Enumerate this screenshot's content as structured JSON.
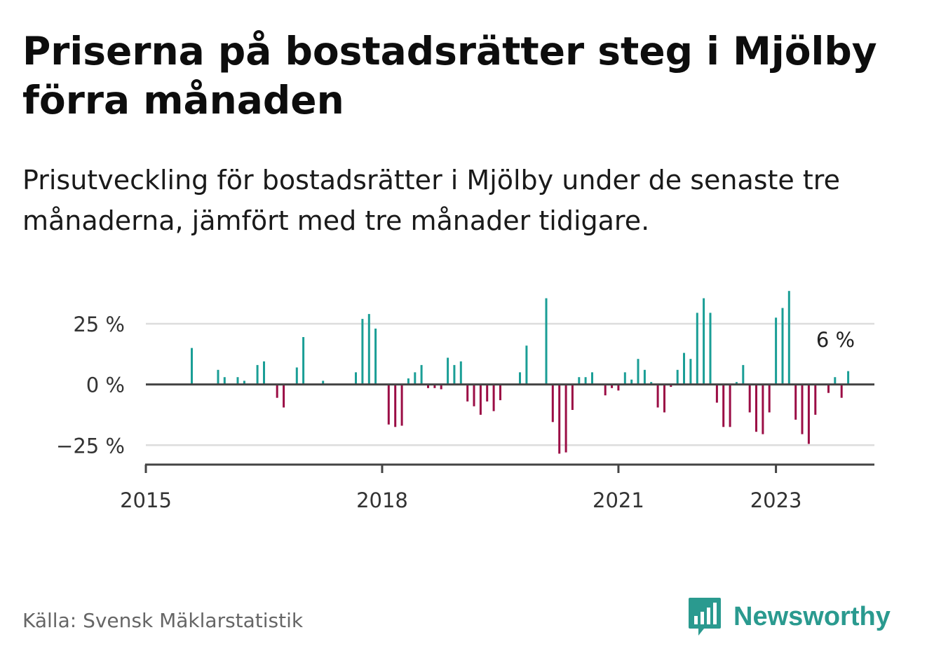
{
  "header": {
    "title": "Priserna på bostadsrätter steg i Mjölby förra månaden",
    "subtitle": "Prisutveckling för bostadsrätter i Mjölby under de senaste tre månaderna, jämfört med tre månader tidigare."
  },
  "footer": {
    "source": "Källa: Svensk Mäklarstatistik",
    "brand": "Newsworthy"
  },
  "colors": {
    "positive": "#1a9e96",
    "negative": "#9b0d45",
    "brand": "#2a9a8f"
  },
  "chart_data": {
    "type": "bar",
    "xlim": [
      "2015-01",
      "2024-04"
    ],
    "ylim": [
      -33,
      40
    ],
    "x_ticks": [
      {
        "date": "2015-01",
        "label": "2015"
      },
      {
        "date": "2018-01",
        "label": "2018"
      },
      {
        "date": "2021-01",
        "label": "2021"
      },
      {
        "date": "2023-01",
        "label": "2023"
      }
    ],
    "y_ticks": [
      {
        "value": 25,
        "label": "25 %"
      },
      {
        "value": 0,
        "label": "0 %"
      },
      {
        "value": -25,
        "label": "−25 %"
      }
    ],
    "grid": true,
    "annotation": {
      "date": "2023-09",
      "value": 6,
      "label": "6 %"
    },
    "points": [
      {
        "x": "2015-08",
        "y": 15
      },
      {
        "x": "2015-12",
        "y": 6
      },
      {
        "x": "2016-01",
        "y": 3
      },
      {
        "x": "2016-03",
        "y": 3
      },
      {
        "x": "2016-04",
        "y": 1.5
      },
      {
        "x": "2016-06",
        "y": 8
      },
      {
        "x": "2016-07",
        "y": 9.5
      },
      {
        "x": "2016-09",
        "y": -5.5
      },
      {
        "x": "2016-10",
        "y": -9.5
      },
      {
        "x": "2016-12",
        "y": 7
      },
      {
        "x": "2017-01",
        "y": 19.5
      },
      {
        "x": "2017-04",
        "y": 1.5
      },
      {
        "x": "2017-09",
        "y": 5
      },
      {
        "x": "2017-10",
        "y": 27
      },
      {
        "x": "2017-11",
        "y": 29
      },
      {
        "x": "2017-12",
        "y": 23
      },
      {
        "x": "2018-02",
        "y": -16.5
      },
      {
        "x": "2018-03",
        "y": -17.5
      },
      {
        "x": "2018-04",
        "y": -17
      },
      {
        "x": "2018-05",
        "y": 2.5
      },
      {
        "x": "2018-06",
        "y": 5
      },
      {
        "x": "2018-07",
        "y": 8
      },
      {
        "x": "2018-08",
        "y": -1.5
      },
      {
        "x": "2018-09",
        "y": -1.5
      },
      {
        "x": "2018-10",
        "y": -2
      },
      {
        "x": "2018-11",
        "y": 11
      },
      {
        "x": "2018-12",
        "y": 8
      },
      {
        "x": "2019-01",
        "y": 9.5
      },
      {
        "x": "2019-02",
        "y": -7
      },
      {
        "x": "2019-03",
        "y": -9
      },
      {
        "x": "2019-04",
        "y": -12.5
      },
      {
        "x": "2019-05",
        "y": -7
      },
      {
        "x": "2019-06",
        "y": -11
      },
      {
        "x": "2019-07",
        "y": -6.5
      },
      {
        "x": "2019-10",
        "y": 5
      },
      {
        "x": "2019-11",
        "y": 16
      },
      {
        "x": "2020-02",
        "y": 35.5
      },
      {
        "x": "2020-03",
        "y": -15.5
      },
      {
        "x": "2020-04",
        "y": -28.5
      },
      {
        "x": "2020-05",
        "y": -28
      },
      {
        "x": "2020-06",
        "y": -10.5
      },
      {
        "x": "2020-07",
        "y": 3
      },
      {
        "x": "2020-08",
        "y": 3
      },
      {
        "x": "2020-09",
        "y": 5
      },
      {
        "x": "2020-11",
        "y": -4.5
      },
      {
        "x": "2020-12",
        "y": -1.5
      },
      {
        "x": "2021-01",
        "y": -2.5
      },
      {
        "x": "2021-02",
        "y": 5
      },
      {
        "x": "2021-03",
        "y": 2
      },
      {
        "x": "2021-04",
        "y": 10.5
      },
      {
        "x": "2021-05",
        "y": 6
      },
      {
        "x": "2021-06",
        "y": 1
      },
      {
        "x": "2021-07",
        "y": -9.5
      },
      {
        "x": "2021-08",
        "y": -11.5
      },
      {
        "x": "2021-09",
        "y": -1
      },
      {
        "x": "2021-10",
        "y": 6
      },
      {
        "x": "2021-11",
        "y": 13
      },
      {
        "x": "2021-12",
        "y": 10.5
      },
      {
        "x": "2022-01",
        "y": 29.5
      },
      {
        "x": "2022-02",
        "y": 35.5
      },
      {
        "x": "2022-03",
        "y": 29.5
      },
      {
        "x": "2022-04",
        "y": -7.5
      },
      {
        "x": "2022-05",
        "y": -17.5
      },
      {
        "x": "2022-06",
        "y": -17.5
      },
      {
        "x": "2022-07",
        "y": 1
      },
      {
        "x": "2022-08",
        "y": 8
      },
      {
        "x": "2022-09",
        "y": -11.5
      },
      {
        "x": "2022-10",
        "y": -19.5
      },
      {
        "x": "2022-11",
        "y": -20.5
      },
      {
        "x": "2022-12",
        "y": -11.5
      },
      {
        "x": "2023-01",
        "y": 27.5
      },
      {
        "x": "2023-02",
        "y": 31.5
      },
      {
        "x": "2023-03",
        "y": 38.5
      },
      {
        "x": "2023-04",
        "y": -14.5
      },
      {
        "x": "2023-05",
        "y": -20.5
      },
      {
        "x": "2023-06",
        "y": -24.5
      },
      {
        "x": "2023-07",
        "y": -12.5
      },
      {
        "x": "2023-09",
        "y": -3.5
      },
      {
        "x": "2023-10",
        "y": 3
      },
      {
        "x": "2023-11",
        "y": -5.5
      },
      {
        "x": "2023-12",
        "y": 5.5
      }
    ]
  }
}
